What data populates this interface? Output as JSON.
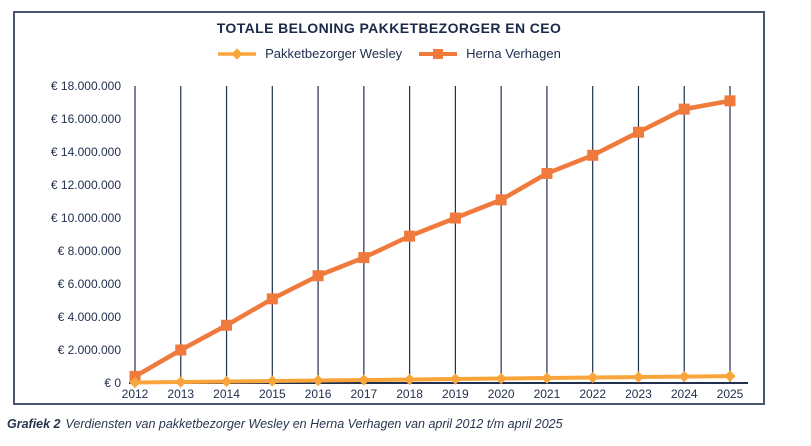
{
  "figure": {
    "caption_label": "Grafiek 2",
    "caption_text": "Verdiensten van pakketbezorger Wesley en Herna Verhagen van april 2012 t/m april 2025"
  },
  "colors": {
    "navy": "#22304F",
    "title_navy": "#1B2A4A",
    "panel_border": "#4A566F",
    "wesley_amber": "#F9A53B",
    "herna_orange": "#F0793C"
  },
  "chart_data": {
    "type": "line",
    "title": "TOTALE BELONING PAKKETBEZORGER EN CEO",
    "xlabel": "",
    "ylabel": "",
    "x": [
      "2012",
      "2013",
      "2014",
      "2015",
      "2016",
      "2017",
      "2018",
      "2019",
      "2020",
      "2021",
      "2022",
      "2023",
      "2024",
      "2025"
    ],
    "series": [
      {
        "name": "Pakketbezorger Wesley",
        "color": "#F9A53B",
        "marker": "diamond",
        "values": [
          30000,
          60000,
          90000,
          120000,
          150000,
          180000,
          210000,
          240000,
          270000,
          300000,
          330000,
          360000,
          390000,
          420000
        ]
      },
      {
        "name": "Herna Verhagen",
        "color": "#F0793C",
        "marker": "square",
        "values": [
          400000,
          2000000,
          3500000,
          5100000,
          6500000,
          7600000,
          8900000,
          10000000,
          11100000,
          12700000,
          13800000,
          15200000,
          16600000,
          17100000
        ]
      }
    ],
    "ylim": [
      0,
      18000000
    ],
    "y_tick_step": 2000000,
    "y_tick_labels": [
      "€ 0",
      "€ 2.000.000",
      "€ 4.000.000",
      "€ 6.000.000",
      "€ 8.000.000",
      "€ 10.000.000",
      "€ 12.000.000",
      "€ 14.000.000",
      "€ 16.000.000",
      "€ 18.000.000"
    ],
    "grid": "vertical-only",
    "legend_position": "top"
  }
}
